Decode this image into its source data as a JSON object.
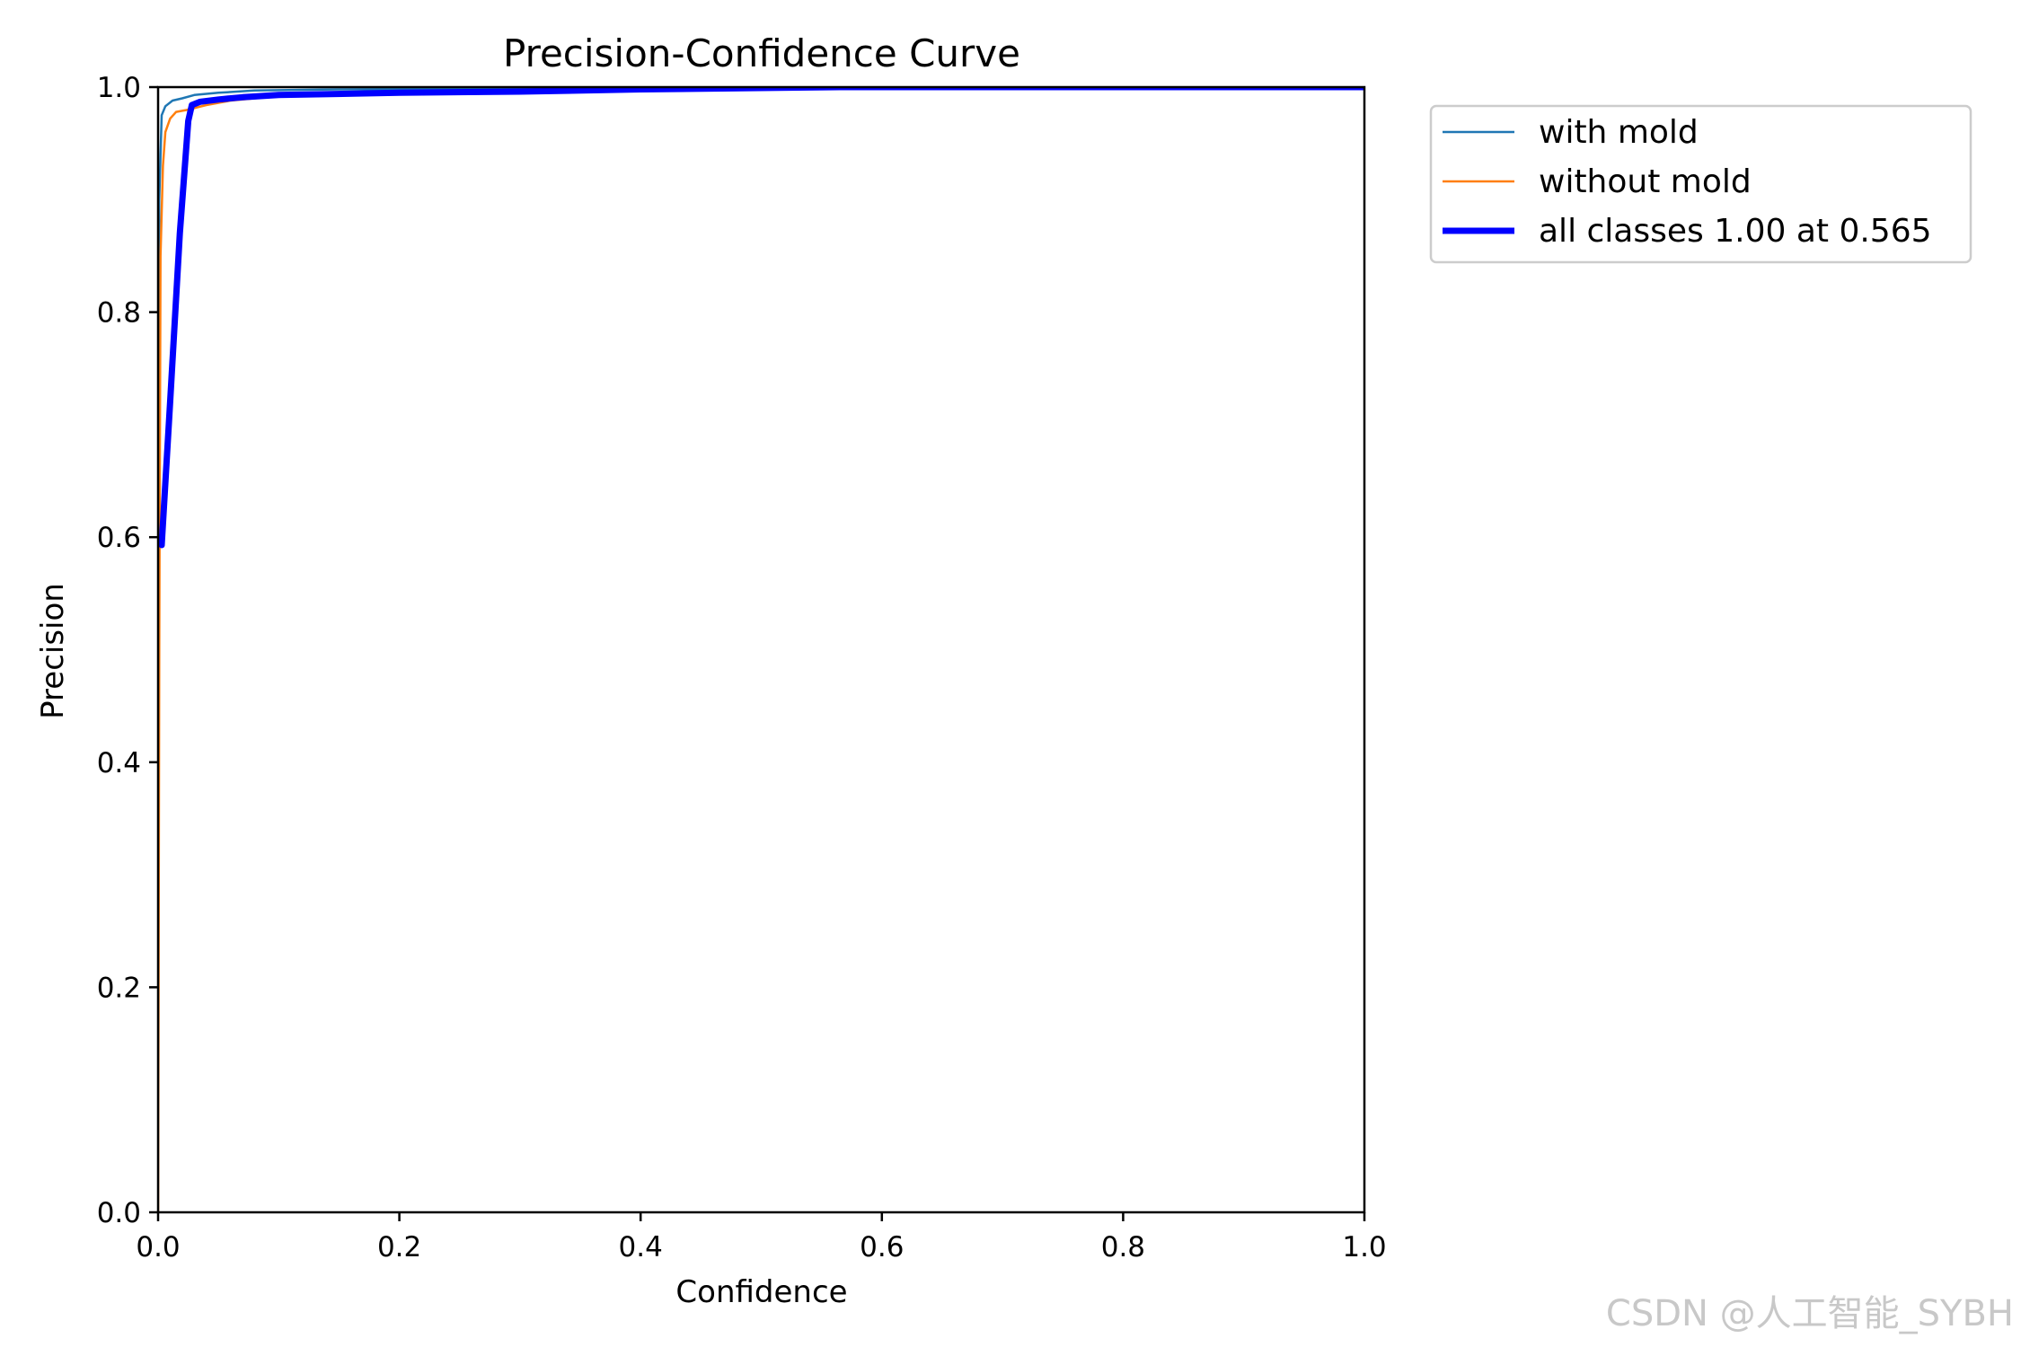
{
  "chart_data": {
    "type": "line",
    "title": "Precision-Confidence Curve",
    "xlabel": "Confidence",
    "ylabel": "Precision",
    "xlim": [
      0.0,
      1.0
    ],
    "ylim": [
      0.0,
      1.0
    ],
    "xticks": [
      "0.0",
      "0.2",
      "0.4",
      "0.6",
      "0.8",
      "1.0"
    ],
    "yticks": [
      "0.0",
      "0.2",
      "0.4",
      "0.6",
      "0.8",
      "1.0"
    ],
    "grid": false,
    "legend_position": "outside-top-right",
    "series": [
      {
        "name": "with mold",
        "color": "#1f77b4",
        "width": "thin",
        "x": [
          0.0,
          0.001,
          0.003,
          0.006,
          0.012,
          0.02,
          0.03,
          0.05,
          0.08,
          0.15,
          0.3,
          0.5,
          0.8,
          1.0
        ],
        "y": [
          0.6,
          0.9,
          0.975,
          0.983,
          0.988,
          0.99,
          0.993,
          0.995,
          0.997,
          0.998,
          0.999,
          1.0,
          1.0,
          1.0
        ]
      },
      {
        "name": "without mold",
        "color": "#ff7f0e",
        "width": "thin",
        "x": [
          0.0,
          0.001,
          0.002,
          0.004,
          0.006,
          0.01,
          0.015,
          0.025,
          0.04,
          0.06,
          0.1,
          0.2,
          0.4,
          0.7,
          1.0
        ],
        "y": [
          0.0,
          0.5,
          0.85,
          0.93,
          0.96,
          0.972,
          0.978,
          0.98,
          0.984,
          0.988,
          0.992,
          0.996,
          0.999,
          1.0,
          1.0
        ]
      },
      {
        "name": "all classes 1.00 at 0.565",
        "color": "#0000ff",
        "width": "thick",
        "x": [
          0.0,
          0.003,
          0.01,
          0.018,
          0.025,
          0.028,
          0.035,
          0.05,
          0.07,
          0.1,
          0.2,
          0.3,
          0.4,
          0.565,
          0.8,
          1.0
        ],
        "y": [
          0.6,
          0.593,
          0.72,
          0.87,
          0.97,
          0.984,
          0.987,
          0.989,
          0.991,
          0.993,
          0.995,
          0.996,
          0.998,
          1.0,
          1.0,
          1.0
        ]
      }
    ]
  },
  "watermark": "CSDN @人工智能_SYBH"
}
